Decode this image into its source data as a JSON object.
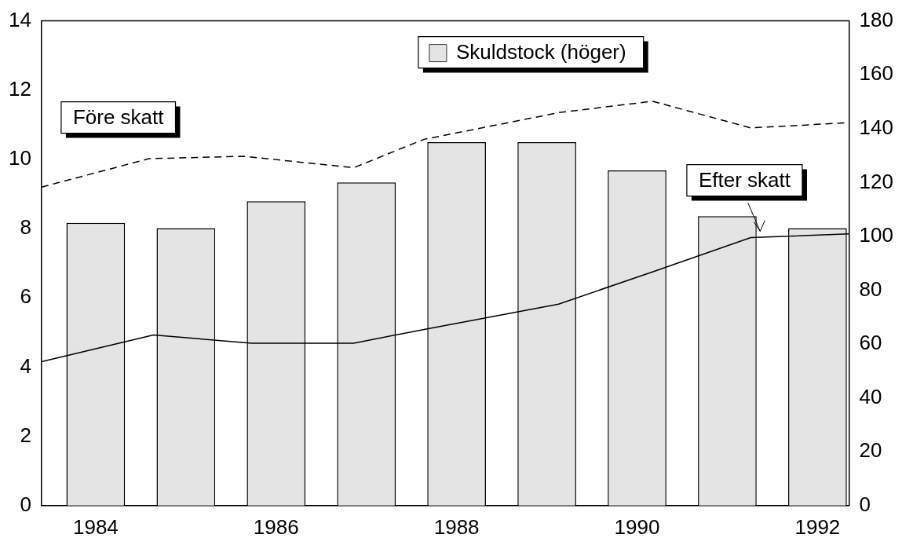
{
  "chart_data": {
    "type": "bar",
    "x": [
      1984,
      1985,
      1986,
      1987,
      1988,
      1989,
      1990,
      1991,
      1992
    ],
    "xlim": [
      1983.4,
      1992.35
    ],
    "xticks": [
      1984,
      1986,
      1988,
      1990,
      1992
    ],
    "ylim": [
      0,
      14
    ],
    "yticks": [
      0,
      2,
      4,
      6,
      8,
      10,
      12,
      14
    ],
    "y2lim": [
      0,
      180
    ],
    "y2ticks": [
      0,
      20,
      40,
      60,
      80,
      100,
      120,
      140,
      160,
      180
    ],
    "grid": false,
    "legend": "top",
    "marker": "none",
    "series": [
      {
        "name": "Skuldstock (höger)",
        "axis": "y2",
        "color": "#e4e4e4",
        "values": [
          105,
          103,
          113,
          120,
          135,
          135,
          124.5,
          107.5,
          103
        ]
      },
      {
        "name": "Före skatt",
        "type": "line",
        "axis": "y",
        "color": "#000000",
        "line_style": "dashed",
        "x": [
          1983.4,
          1984.59,
          1985.64,
          1986.86,
          1987.64,
          1989.13,
          1990.17,
          1991.26,
          1992.35
        ],
        "values": [
          9.2,
          10.02,
          10.09,
          9.76,
          10.58,
          11.35,
          11.68,
          10.91,
          11.06
        ]
      },
      {
        "name": "Efter skatt",
        "type": "line",
        "axis": "y",
        "color": "#000000",
        "line_style": "solid",
        "x": [
          1983.4,
          1984.64,
          1985.73,
          1986.86,
          1987.64,
          1989.13,
          1990.17,
          1991.26,
          1992.35
        ],
        "values": [
          4.16,
          4.93,
          4.69,
          4.69,
          5.09,
          5.82,
          6.75,
          7.74,
          7.85
        ]
      }
    ]
  }
}
